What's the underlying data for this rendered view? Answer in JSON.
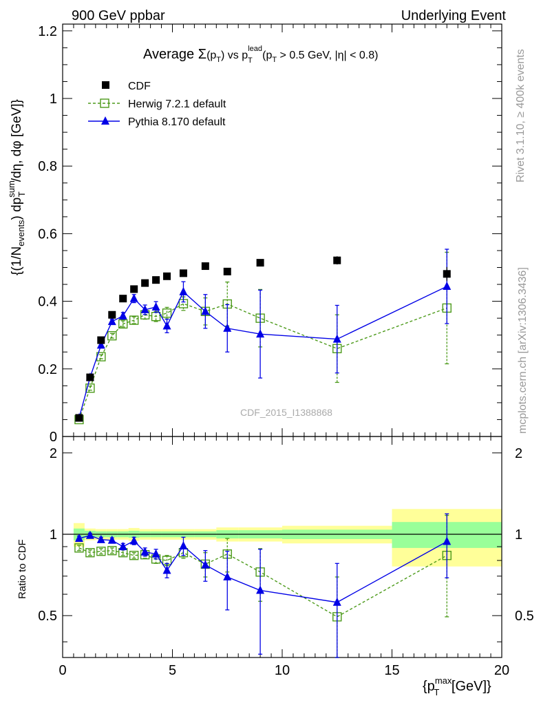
{
  "header": {
    "left": "900 GeV ppbar",
    "right": "Underlying Event"
  },
  "side_labels": {
    "rivet": "Rivet 3.1.10, ≥ 400k events",
    "mcplots": "mcplots.cern.ch [arXiv:1306.3436]"
  },
  "watermark": "CDF_2015_I1388868",
  "colors": {
    "cdf": "#000000",
    "herwig": "#4c9a1a",
    "pythia": "#0000e6",
    "band_inner": "#99ff99",
    "band_outer": "#ffff99"
  },
  "chart_data": [
    {
      "type": "scatter",
      "title": "Average Σ(p_T) vs p_T^lead (p_T > 0.5 GeV, |η| < 0.8)",
      "title_parts": {
        "avg": "Average ",
        "sigma": "Σ",
        "arg_open": "(p",
        "arg_sub": "T",
        "arg_close": ")",
        "vs": " vs p",
        "lead_sup": "lead",
        "lead_sub": "T",
        "cuts_a": " (p",
        "cuts_sub": "T",
        "cuts_b": " > 0.5 GeV, |η| < 0.8)"
      },
      "ylabel_parts": {
        "a": "{(1/N",
        "events": "events",
        "b": ") dp",
        "sum": "sum",
        "T": "T",
        "c": "/dη, dφ [GeV]}"
      },
      "xlim": [
        0,
        20
      ],
      "ylim": [
        0,
        1.22
      ],
      "yticks": [
        0,
        0.2,
        0.4,
        0.6,
        0.8,
        1,
        1.2
      ],
      "ytick_labels": [
        "0",
        "0.2",
        "0.4",
        "0.6",
        "0.8",
        "1",
        "1.2"
      ],
      "legend": {
        "position": "top-left",
        "entries": [
          "CDF",
          "Herwig 7.2.1 default",
          "Pythia 8.170 default"
        ]
      },
      "series": [
        {
          "name": "CDF",
          "marker": "filled-square",
          "x": [
            0.75,
            1.25,
            1.75,
            2.25,
            2.75,
            3.25,
            3.75,
            4.25,
            4.75,
            5.5,
            6.5,
            7.5,
            9,
            12.5,
            17.5
          ],
          "y": [
            0.055,
            0.175,
            0.285,
            0.36,
            0.408,
            0.436,
            0.454,
            0.463,
            0.474,
            0.483,
            0.504,
            0.488,
            0.514,
            0.521,
            0.481
          ],
          "err": [
            0.003,
            0.004,
            0.005,
            0.006,
            0.006,
            0.007,
            0.007,
            0.007,
            0.008,
            0.008,
            0.008,
            0.009,
            0.01,
            0.012,
            0.02
          ]
        },
        {
          "name": "Herwig 7.2.1 default",
          "marker": "open-square",
          "x": [
            0.75,
            1.25,
            1.75,
            2.25,
            2.75,
            3.25,
            3.75,
            4.25,
            4.75,
            5.5,
            6.5,
            7.5,
            9,
            12.5,
            17.5
          ],
          "y": [
            0.05,
            0.143,
            0.236,
            0.298,
            0.333,
            0.344,
            0.36,
            0.355,
            0.365,
            0.393,
            0.37,
            0.392,
            0.35,
            0.26,
            0.38
          ],
          "err": [
            0.004,
            0.006,
            0.006,
            0.007,
            0.009,
            0.01,
            0.013,
            0.015,
            0.017,
            0.02,
            0.04,
            0.065,
            0.085,
            0.1,
            0.165
          ]
        },
        {
          "name": "Pythia 8.170 default",
          "marker": "filled-triangle",
          "x": [
            0.75,
            1.25,
            1.75,
            2.25,
            2.75,
            3.25,
            3.75,
            4.25,
            4.75,
            5.5,
            6.5,
            7.5,
            9,
            12.5,
            17.5
          ],
          "y": [
            0.055,
            0.175,
            0.27,
            0.34,
            0.357,
            0.408,
            0.375,
            0.383,
            0.327,
            0.428,
            0.37,
            0.32,
            0.303,
            0.288,
            0.444
          ],
          "err": [
            0.004,
            0.005,
            0.006,
            0.007,
            0.01,
            0.012,
            0.014,
            0.016,
            0.02,
            0.03,
            0.05,
            0.07,
            0.13,
            0.1,
            0.11
          ]
        }
      ]
    },
    {
      "type": "scatter",
      "title": "",
      "ylabel": "Ratio to CDF",
      "xlabel_parts": {
        "a": "{p",
        "max": "max",
        "T": "T",
        "b": " [GeV]}"
      },
      "xlim": [
        0,
        20
      ],
      "ylim": [
        0.35,
        2.3
      ],
      "xticks": [
        0,
        5,
        10,
        15,
        20
      ],
      "xtick_labels": [
        "0",
        "5",
        "10",
        "15",
        "20"
      ],
      "yticks": [
        0.5,
        1,
        2
      ],
      "ytick_labels": [
        "0.5",
        "1",
        "2"
      ],
      "band_bins": [
        {
          "x0": 0.5,
          "x1": 1.0,
          "inner": 0.05,
          "outer": 0.1
        },
        {
          "x0": 1.0,
          "x1": 1.5,
          "inner": 0.03,
          "outer": 0.05
        },
        {
          "x0": 1.5,
          "x1": 2.0,
          "inner": 0.025,
          "outer": 0.045
        },
        {
          "x0": 2.0,
          "x1": 2.5,
          "inner": 0.025,
          "outer": 0.045
        },
        {
          "x0": 2.5,
          "x1": 3.0,
          "inner": 0.025,
          "outer": 0.045
        },
        {
          "x0": 3.0,
          "x1": 3.5,
          "inner": 0.03,
          "outer": 0.055
        },
        {
          "x0": 3.5,
          "x1": 4.0,
          "inner": 0.025,
          "outer": 0.045
        },
        {
          "x0": 4.0,
          "x1": 4.5,
          "inner": 0.025,
          "outer": 0.045
        },
        {
          "x0": 4.5,
          "x1": 5.0,
          "inner": 0.025,
          "outer": 0.045
        },
        {
          "x0": 5.0,
          "x1": 6.0,
          "inner": 0.025,
          "outer": 0.045
        },
        {
          "x0": 6.0,
          "x1": 7.0,
          "inner": 0.025,
          "outer": 0.045
        },
        {
          "x0": 7.0,
          "x1": 8.0,
          "inner": 0.035,
          "outer": 0.06
        },
        {
          "x0": 8.0,
          "x1": 10.0,
          "inner": 0.035,
          "outer": 0.06
        },
        {
          "x0": 10.0,
          "x1": 15.0,
          "inner": 0.04,
          "outer": 0.075
        },
        {
          "x0": 15.0,
          "x1": 20.0,
          "inner": 0.11,
          "outer": 0.24
        }
      ],
      "series": [
        {
          "name": "Herwig 7.2.1 default",
          "x": [
            0.75,
            1.25,
            1.75,
            2.25,
            2.75,
            3.25,
            3.75,
            4.25,
            4.75,
            5.5,
            6.5,
            7.5,
            9,
            12.5,
            17.5
          ],
          "y": [
            0.89,
            0.855,
            0.865,
            0.87,
            0.855,
            0.835,
            0.84,
            0.81,
            0.8,
            0.855,
            0.775,
            0.845,
            0.725,
            0.495,
            0.835
          ],
          "err": [
            0.02,
            0.02,
            0.02,
            0.02,
            0.02,
            0.02,
            0.025,
            0.03,
            0.035,
            0.04,
            0.08,
            0.12,
            0.16,
            0.2,
            0.34
          ]
        },
        {
          "name": "Pythia 8.170 default",
          "x": [
            0.75,
            1.25,
            1.75,
            2.25,
            2.75,
            3.25,
            3.75,
            4.25,
            4.75,
            5.5,
            6.5,
            7.5,
            9,
            12.5,
            17.5
          ],
          "y": [
            0.965,
            0.99,
            0.955,
            0.95,
            0.9,
            0.945,
            0.86,
            0.845,
            0.735,
            0.905,
            0.77,
            0.695,
            0.62,
            0.56,
            0.94
          ],
          "err": [
            0.02,
            0.02,
            0.02,
            0.02,
            0.025,
            0.03,
            0.03,
            0.035,
            0.045,
            0.07,
            0.1,
            0.17,
            0.26,
            0.22,
            0.25
          ]
        }
      ]
    }
  ]
}
